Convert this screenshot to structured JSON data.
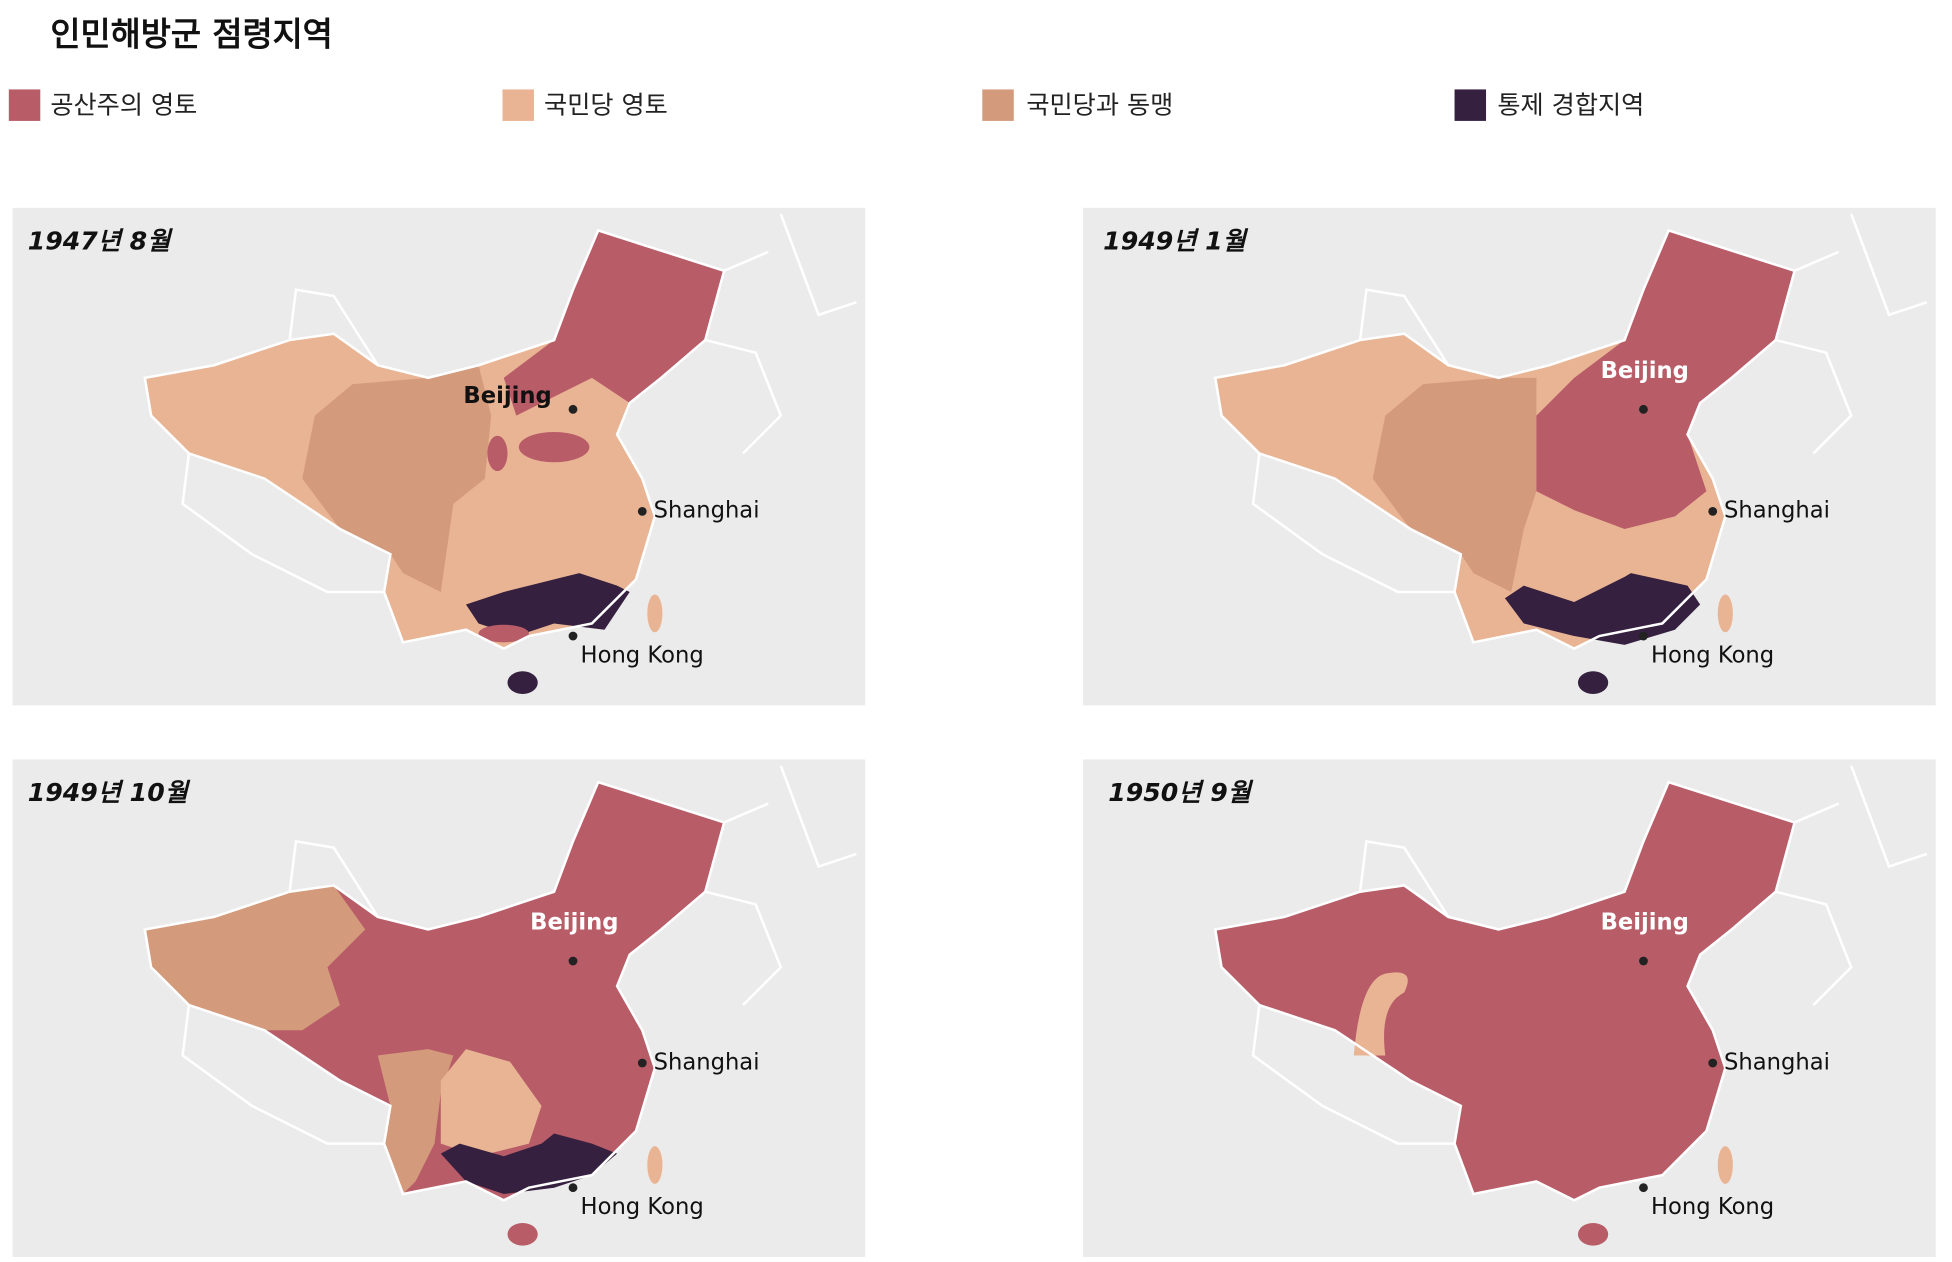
{
  "header": {
    "title": "인민해방군 점령지역"
  },
  "legend": [
    {
      "label": "공산주의 영토",
      "color": "#b85c68"
    },
    {
      "label": "국민당 영토",
      "color": "#e9b494"
    },
    {
      "label": "국민당과 동맹",
      "color": "#d49a7c"
    },
    {
      "label": "통제 경합지역",
      "color": "#35203f"
    }
  ],
  "panels": [
    {
      "date": "1947년 8월",
      "cities": [
        "Beijing",
        "Shanghai",
        "Hong Kong"
      ]
    },
    {
      "date": "1949년 1월",
      "cities": [
        "Beijing",
        "Shanghai",
        "Hong Kong"
      ]
    },
    {
      "date": "1949년 10월",
      "cities": [
        "Beijing",
        "Shanghai",
        "Hong Kong"
      ]
    },
    {
      "date": "1950년 9월",
      "cities": [
        "Beijing",
        "Shanghai",
        "Hong Kong"
      ]
    }
  ]
}
